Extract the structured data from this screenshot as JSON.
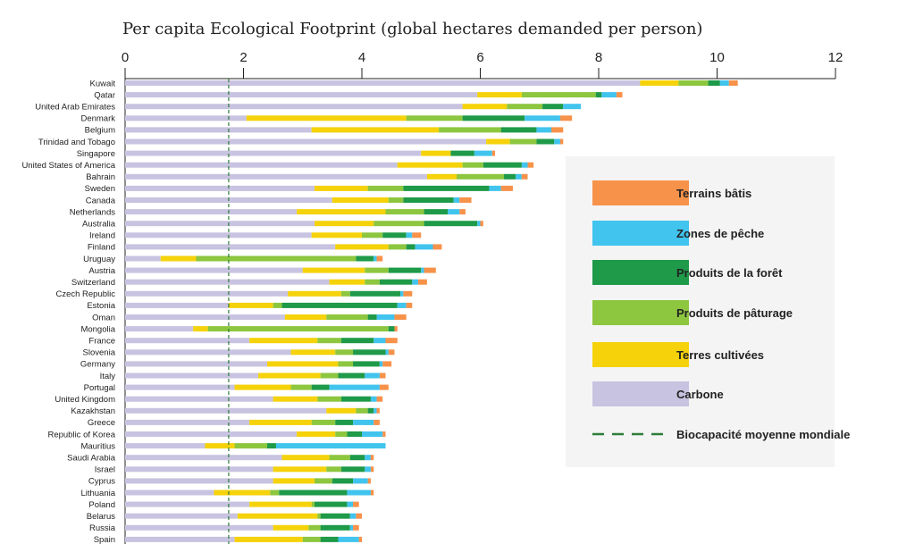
{
  "chart_data": {
    "type": "bar",
    "orientation": "horizontal",
    "stacked": true,
    "title": "Per capita Ecological Footprint (global hectares demanded per person)",
    "xlim": [
      0,
      12
    ],
    "x_ticks": [
      "0",
      "2",
      "4",
      "6",
      "8",
      "10",
      "12"
    ],
    "x_tick_values": [
      0,
      2,
      4,
      6,
      8,
      10,
      12
    ],
    "legend_position": "right",
    "reference_line": {
      "name": "Biocapacité moyenne mondiale",
      "value": 1.75,
      "color": "#2e7d3a"
    },
    "categories": [
      "Kuwait",
      "Qatar",
      "United Arab Emirates",
      "Denmark",
      "Belgium",
      "Trinidad and Tobago",
      "Singapore",
      "United States of America",
      "Bahrain",
      "Sweden",
      "Canada",
      "Netherlands",
      "Australia",
      "Ireland",
      "Finland",
      "Uruguay",
      "Austria",
      "Switzerland",
      "Czech Republic",
      "Estonia",
      "Oman",
      "Mongolia",
      "France",
      "Slovenia",
      "Germany",
      "Italy",
      "Portugal",
      "United Kingdom",
      "Kazakhstan",
      "Greece",
      "Republic of Korea",
      "Mauritius",
      "Saudi Arabia",
      "Israel",
      "Cyprus",
      "Lithuania",
      "Poland",
      "Belarus",
      "Russia",
      "Spain"
    ],
    "series": [
      {
        "name": "Carbone",
        "color": "#c8c3e0",
        "values": [
          8.7,
          5.95,
          5.7,
          2.05,
          3.15,
          6.1,
          5.0,
          4.6,
          5.1,
          3.2,
          3.5,
          2.9,
          3.2,
          3.15,
          3.55,
          0.6,
          3.0,
          3.45,
          2.75,
          1.75,
          2.7,
          1.15,
          2.1,
          2.8,
          2.4,
          2.25,
          1.85,
          2.5,
          3.4,
          2.1,
          2.9,
          1.35,
          2.65,
          2.5,
          2.5,
          1.5,
          2.1,
          1.9,
          2.5,
          1.85
        ]
      },
      {
        "name": "Terres cultivées",
        "color": "#f5d20a",
        "values": [
          0.65,
          0.75,
          0.75,
          2.7,
          2.15,
          0.4,
          0.5,
          1.1,
          0.5,
          0.9,
          0.95,
          1.5,
          1.0,
          0.85,
          0.9,
          0.6,
          1.05,
          0.6,
          0.9,
          0.75,
          0.7,
          0.25,
          1.15,
          0.75,
          1.2,
          1.05,
          0.95,
          0.75,
          0.5,
          1.05,
          0.65,
          0.5,
          0.8,
          0.9,
          0.7,
          0.95,
          1.05,
          1.35,
          0.6,
          1.15
        ]
      },
      {
        "name": "Produits de pâturage",
        "color": "#8dc63f",
        "values": [
          0.5,
          1.25,
          0.6,
          0.95,
          1.05,
          0.45,
          0.0,
          0.35,
          0.8,
          0.6,
          0.25,
          0.65,
          0.85,
          0.35,
          0.3,
          2.7,
          0.4,
          0.25,
          0.15,
          0.15,
          0.7,
          3.05,
          0.4,
          0.3,
          0.25,
          0.3,
          0.35,
          0.4,
          0.2,
          0.4,
          0.2,
          0.55,
          0.35,
          0.25,
          0.3,
          0.15,
          0.05,
          0.05,
          0.2,
          0.3
        ]
      },
      {
        "name": "Produits de la forêt",
        "color": "#1e9a48",
        "values": [
          0.2,
          0.1,
          0.35,
          1.05,
          0.6,
          0.3,
          0.4,
          0.65,
          0.2,
          1.45,
          0.85,
          0.4,
          0.9,
          0.4,
          0.15,
          0.3,
          0.55,
          0.55,
          0.85,
          1.95,
          0.15,
          0.1,
          0.55,
          0.55,
          0.45,
          0.45,
          0.3,
          0.5,
          0.1,
          0.3,
          0.25,
          0.15,
          0.25,
          0.4,
          0.35,
          1.15,
          0.55,
          0.5,
          0.5,
          0.3
        ]
      },
      {
        "name": "Zones de pêche",
        "color": "#41c4ee",
        "values": [
          0.15,
          0.25,
          0.3,
          0.6,
          0.25,
          0.1,
          0.3,
          0.1,
          0.1,
          0.2,
          0.1,
          0.2,
          0.05,
          0.1,
          0.3,
          0.05,
          0.05,
          0.1,
          0.05,
          0.15,
          0.3,
          0.0,
          0.2,
          0.05,
          0.05,
          0.25,
          0.85,
          0.1,
          0.05,
          0.35,
          0.35,
          1.85,
          0.1,
          0.1,
          0.25,
          0.4,
          0.1,
          0.1,
          0.05,
          0.35
        ]
      },
      {
        "name": "Terrains bâtis",
        "color": "#f7924a",
        "values": [
          0.15,
          0.1,
          0.0,
          0.2,
          0.2,
          0.05,
          0.05,
          0.1,
          0.1,
          0.2,
          0.2,
          0.1,
          0.05,
          0.15,
          0.15,
          0.1,
          0.2,
          0.15,
          0.15,
          0.1,
          0.2,
          0.05,
          0.2,
          0.1,
          0.15,
          0.1,
          0.15,
          0.1,
          0.05,
          0.1,
          0.05,
          0.0,
          0.05,
          0.05,
          0.05,
          0.05,
          0.1,
          0.1,
          0.1,
          0.05
        ]
      }
    ],
    "legend_order": [
      "Terrains bâtis",
      "Zones de pêche",
      "Produits de la forêt",
      "Produits de pâturage",
      "Terres cultivées",
      "Carbone",
      "Biocapacité moyenne mondiale"
    ]
  }
}
